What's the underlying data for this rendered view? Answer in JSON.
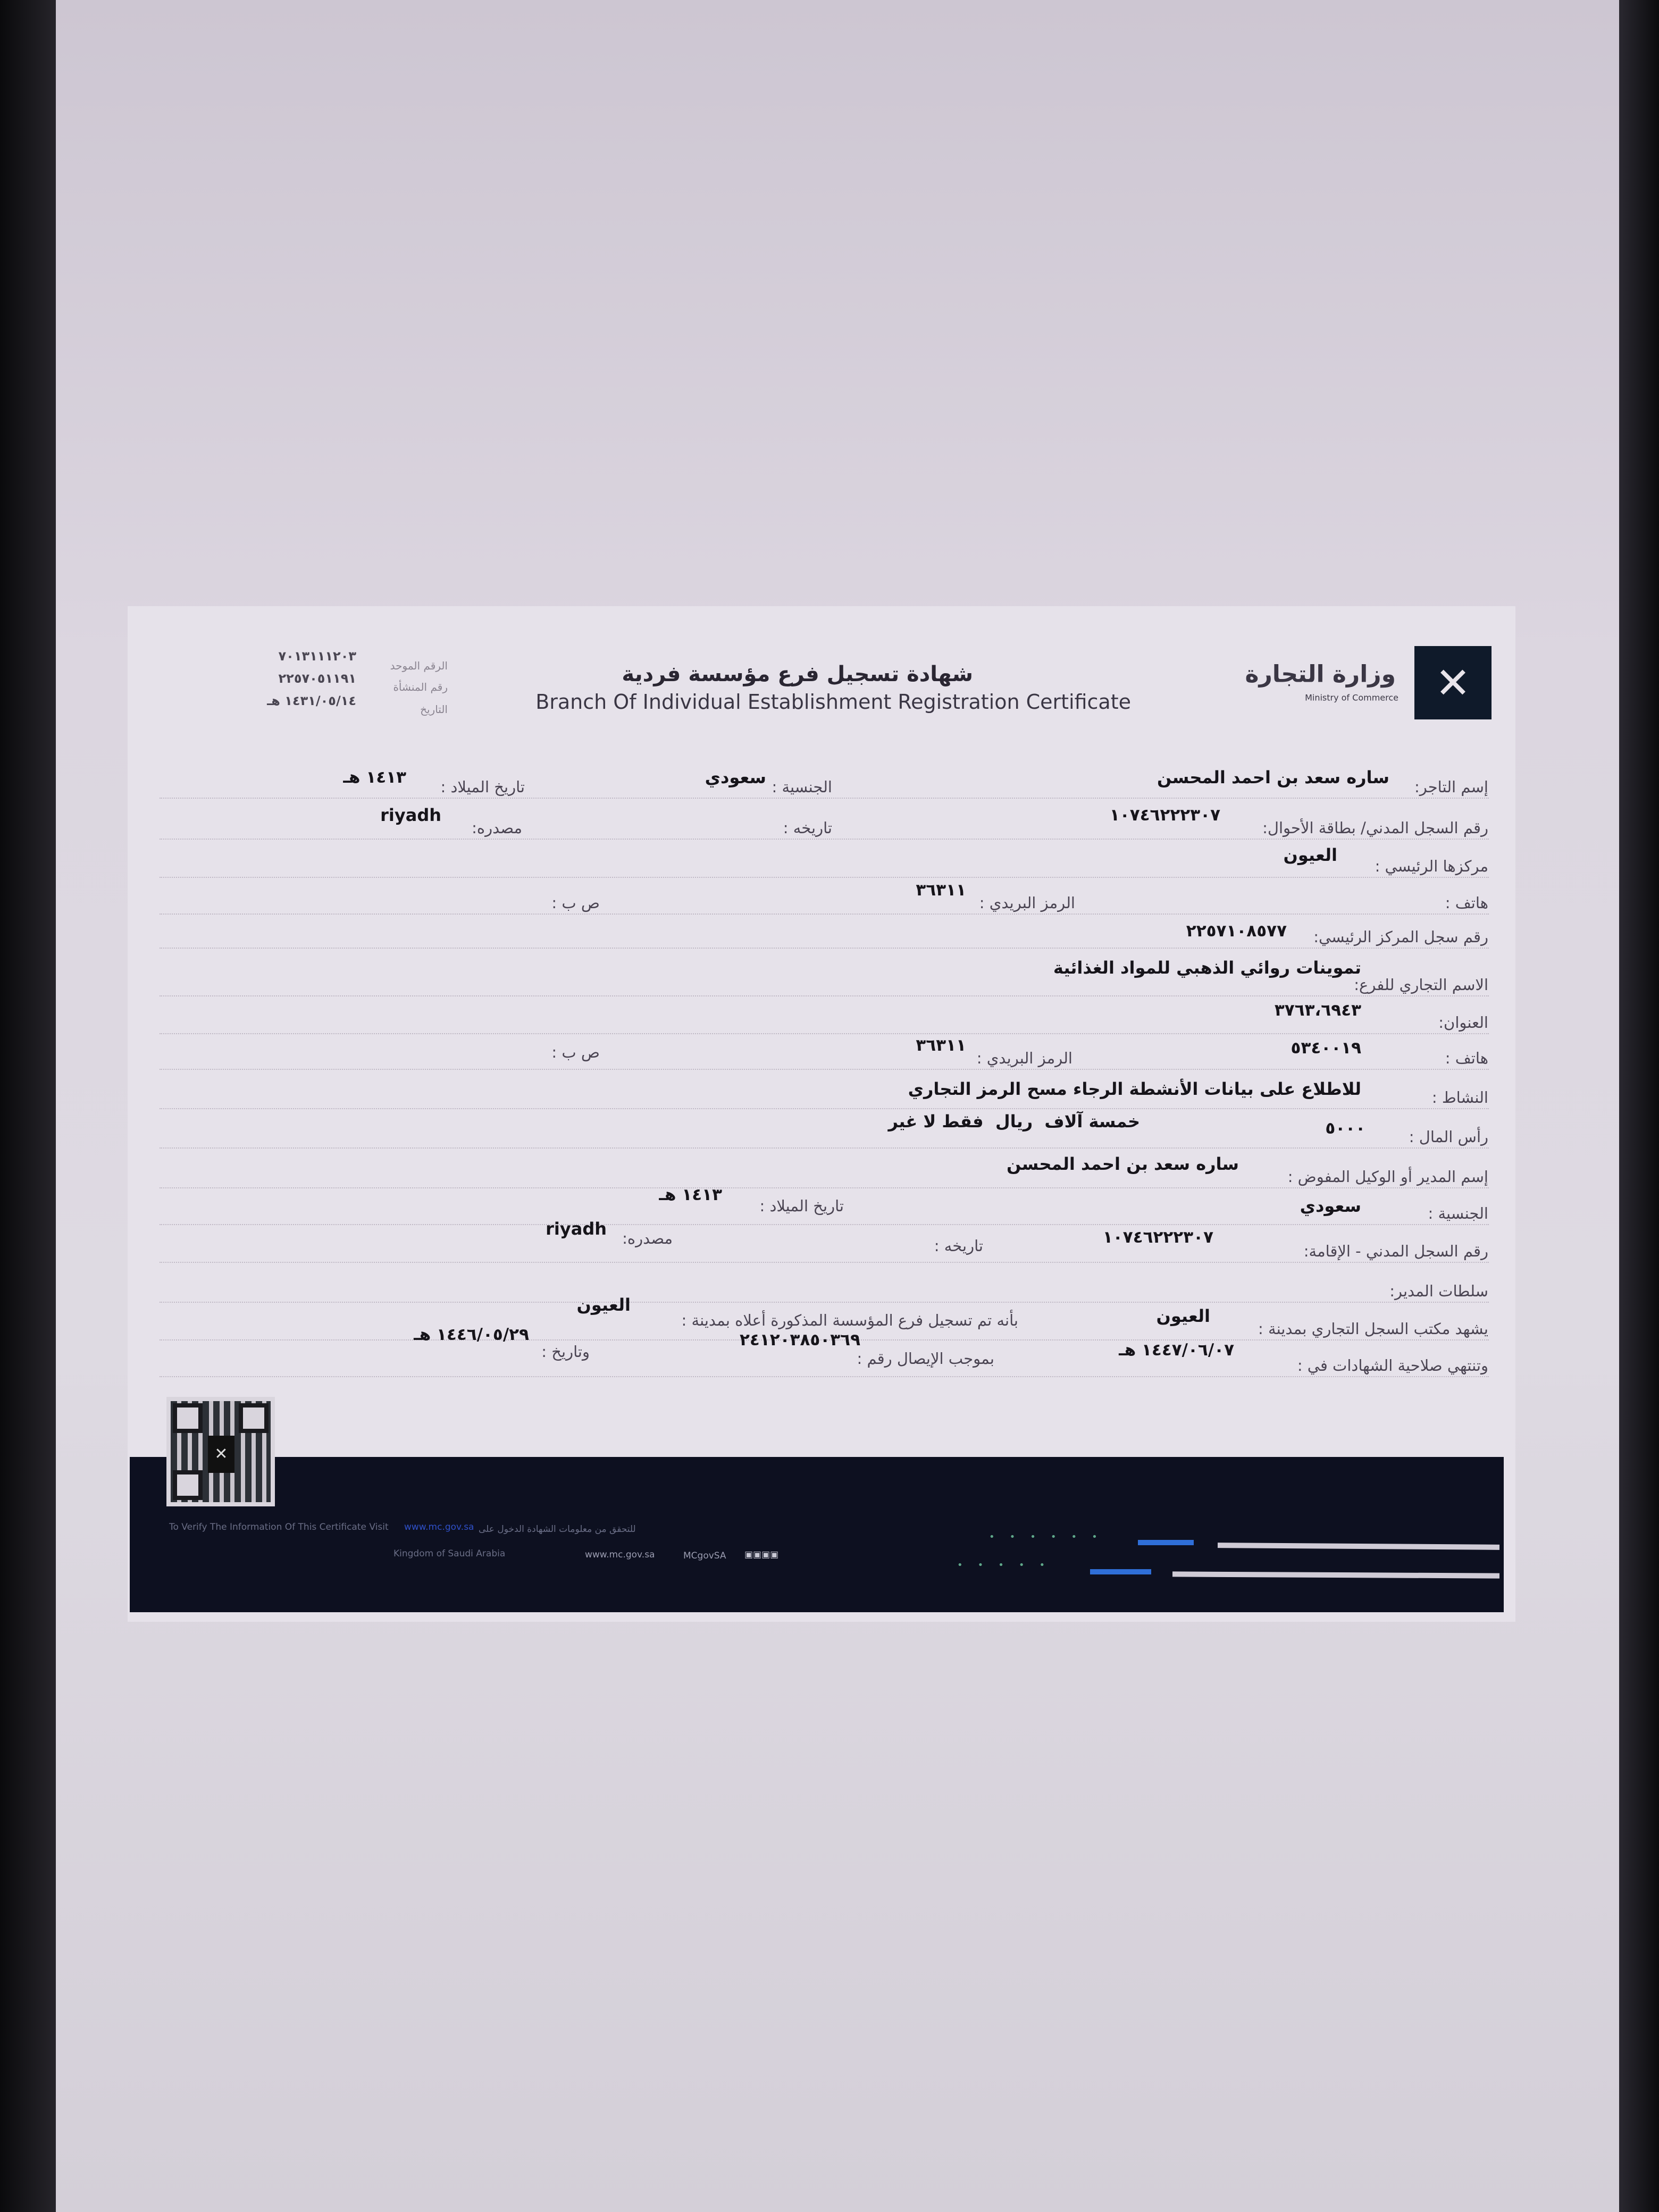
{
  "header": {
    "ministry_ar": "وزارة التجارة",
    "ministry_en": "Ministry of Commerce",
    "title_ar": "شهادة تسجيل فرع مؤسسة فردية",
    "title_en": "Branch Of Individual Establishment Registration Certificate",
    "meta": [
      {
        "label": "الرقم الموحد",
        "value": "٧٠١٣١١١٢٠٣"
      },
      {
        "label": "رقم المنشأة",
        "value": "٢٢٥٧٠٥١١٩١"
      },
      {
        "label": "التاريخ",
        "value": "١٤٣١/٠٥/١٤ هـ"
      }
    ]
  },
  "fields": {
    "merchant_name_label": "إسم التاجر:",
    "merchant_name": "ساره سعد بن احمد المحسن",
    "nationality_label": "الجنسية :",
    "nationality": "سعودي",
    "birth_date_label": "تاريخ الميلاد :",
    "birth_date": "١٤١٣ هـ",
    "civil_id_label": "رقم السجل المدني/ بطاقة الأحوال:",
    "civil_id": "١٠٧٤٦٢٢٢٣٠٧",
    "issue_date_label": "تاريخه :",
    "issue_place_label": "مصدره:",
    "issue_place": "riyadh",
    "headquarters_label": "مركزها الرئيسي :",
    "headquarters": "العيون",
    "phone_label": "هاتف :",
    "postal_code_label": "الرمز البريدي :",
    "postal_code": "٣٦٣١١",
    "po_box_label": "ص ب :",
    "main_cr_label": "رقم سجل المركز الرئيسي:",
    "main_cr": "٢٢٥٧١٠٨٥٧٧",
    "branch_trade_name_label": "الاسم التجاري للفرع:",
    "branch_trade_name": "تموينات روائي الذهبي للمواد الغذائية",
    "address_label": "العنوان:",
    "address": "٣٧٦٣،٦٩٤٣",
    "branch_phone_label": "هاتف :",
    "branch_phone": "٥٣٤٠٠١٩",
    "branch_postal_code_label": "الرمز البريدي :",
    "branch_postal_code": "٣٦٣١١",
    "branch_po_box_label": "ص ب :",
    "activity_label": "النشاط :",
    "activity": "للاطلاع على بيانات الأنشطة الرجاء مسح الرمز التجاري",
    "capital_label": "رأس المال :",
    "capital": "٥٠٠٠",
    "capital_words": "خمسة آلاف  ريال  فقط لا غير",
    "manager_name_label": "إسم المدير أو الوكيل المفوض :",
    "manager_name": "ساره سعد بن احمد المحسن",
    "manager_nationality_label": "الجنسية :",
    "manager_nationality": "سعودي",
    "manager_birth_label": "تاريخ الميلاد :",
    "manager_birth": "١٤١٣ هـ",
    "manager_id_label": "رقم السجل المدني - الإقامة:",
    "manager_id": "١٠٧٤٦٢٢٢٣٠٧",
    "manager_issue_date_label": "تاريخه :",
    "manager_issue_place_label": "مصدره:",
    "manager_issue_place": "riyadh",
    "manager_powers_label": "سلطات المدير:",
    "cr_office_label": "يشهد مكتب السجل التجاري بمدينة :",
    "cr_office_city": "العيون",
    "registered_label": "بأنه تم تسجيل فرع المؤسسة المذكورة أعلاه بمدينة :",
    "registered_city": "العيون",
    "expiry_label": "وتنتهي صلاحية الشهادات في :",
    "expiry": "١٤٤٧/٠٦/٠٧ هـ",
    "receipt_label": "بموجب الإيصال رقم :",
    "receipt": "٢٤١٢٠٣٨٥٠٣٦٩",
    "receipt_date_label": "وتاريخ :",
    "receipt_date": "١٤٤٦/٠٥/٢٩ هـ"
  },
  "footer": {
    "verify_en": "To Verify The Information Of This Certificate Visit",
    "verify_ar": "للتحقق من معلومات الشهادة الدخول على",
    "country": "Kingdom of Saudi Arabia",
    "website": "www.mc.gov.sa",
    "social": "MCgovSA"
  },
  "colors": {
    "footer_bg": "#0d1020",
    "logo_bg": "#0f1a2a",
    "accent_blue": "#2f6fd8"
  }
}
